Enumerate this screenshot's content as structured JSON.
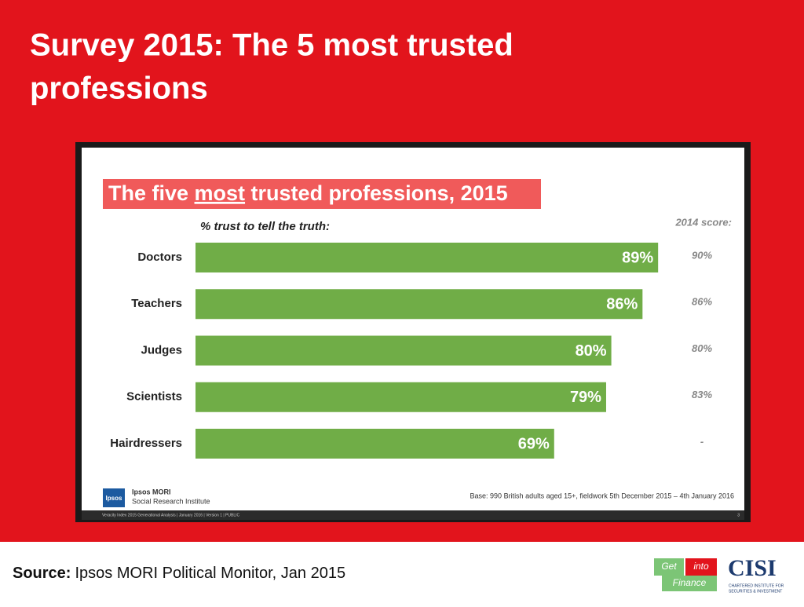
{
  "slide_title": [
    "Survey 2015: The 5 most trusted",
    "professions"
  ],
  "chart_data": {
    "type": "bar",
    "orientation": "horizontal",
    "title": [
      "The five ",
      "most",
      " trusted professions, 2015"
    ],
    "subtitle": "% trust to tell the truth:",
    "categories": [
      "Doctors",
      "Teachers",
      "Judges",
      "Scientists",
      "Hairdressers"
    ],
    "values": [
      89,
      86,
      80,
      79,
      69
    ],
    "value_labels": [
      "89%",
      "86%",
      "80%",
      "79%",
      "69%"
    ],
    "color": "#70ad47",
    "previous": {
      "label": "2014 score:",
      "values": [
        90,
        86,
        80,
        83,
        null
      ],
      "value_labels": [
        "90%",
        "86%",
        "80%",
        "83%",
        "-"
      ]
    },
    "base_note": "Base: 990 British adults aged 15+, fieldwork 5th December 2015 – 4th January 2016",
    "brand": {
      "logo": "Ipsos",
      "name": "Ipsos MORI",
      "unit": "Social Research Institute"
    },
    "footer_strip": "Veracity Index 2015 Generational Analysis | January 2016 | Version 1 | PUBLIC",
    "page_number": "3"
  },
  "source": {
    "label": "Source:",
    "text": "Ipsos MORI Political Monitor, Jan 2015"
  },
  "logos": {
    "get": "Get",
    "into": "into",
    "finance": "Finance",
    "cisi": "CISI",
    "cisi_full": [
      "CHARTERED INSTITUTE FOR",
      "SECURITIES & INVESTMENT"
    ]
  }
}
